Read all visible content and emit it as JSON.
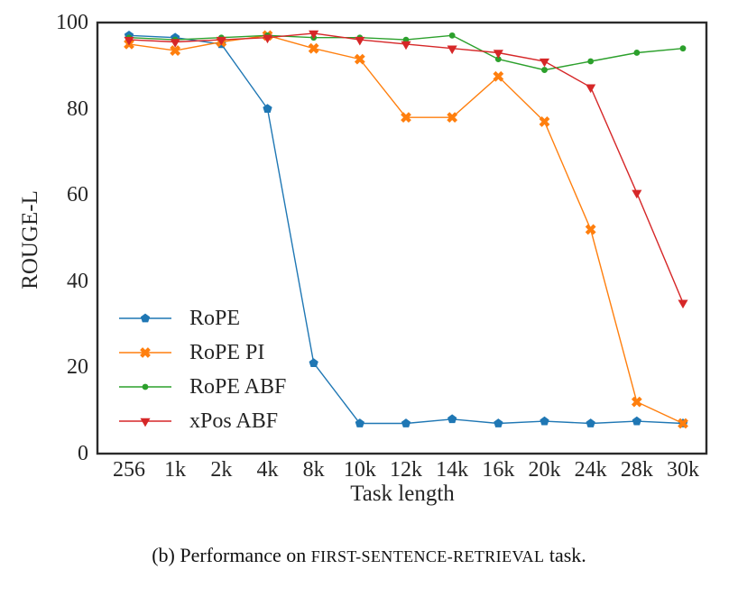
{
  "figure": {
    "caption_prefix": "(b) Performance on ",
    "caption_smallcaps": "FIRST-SENTENCE-RETRIEVAL",
    "caption_suffix": " task."
  },
  "chart_data": {
    "type": "line",
    "title": "",
    "xlabel": "Task length",
    "ylabel": "ROUGE-L",
    "categories": [
      "256",
      "1k",
      "2k",
      "4k",
      "8k",
      "10k",
      "12k",
      "14k",
      "16k",
      "20k",
      "24k",
      "28k",
      "30k"
    ],
    "ylim": [
      0,
      100
    ],
    "yticks": [
      0,
      20,
      40,
      60,
      80,
      100
    ],
    "grid": false,
    "legend_position": "lower-left-inside",
    "axis_color": "#2b2b2b",
    "series": [
      {
        "name": "RoPE",
        "color": "#1f77b4",
        "marker": "pentagon",
        "values": [
          97,
          96.5,
          95,
          80,
          21,
          7,
          7,
          8,
          7,
          7.5,
          7,
          7.5,
          7
        ]
      },
      {
        "name": "RoPE PI",
        "color": "#ff7f0e",
        "marker": "x",
        "values": [
          95,
          93.5,
          95.5,
          97,
          94,
          91.5,
          78,
          78,
          87.5,
          77,
          52,
          12,
          7
        ]
      },
      {
        "name": "RoPE ABF",
        "color": "#2ca02c",
        "marker": "circle",
        "values": [
          96.5,
          96,
          96.5,
          97,
          96.5,
          96.5,
          96,
          97,
          91.5,
          89,
          91,
          93,
          94
        ]
      },
      {
        "name": "xPos ABF",
        "color": "#d62728",
        "marker": "triangle-down",
        "values": [
          96,
          95.5,
          96,
          96.5,
          97.5,
          96,
          95,
          94,
          93,
          91,
          85,
          60.5,
          35
        ]
      }
    ]
  }
}
